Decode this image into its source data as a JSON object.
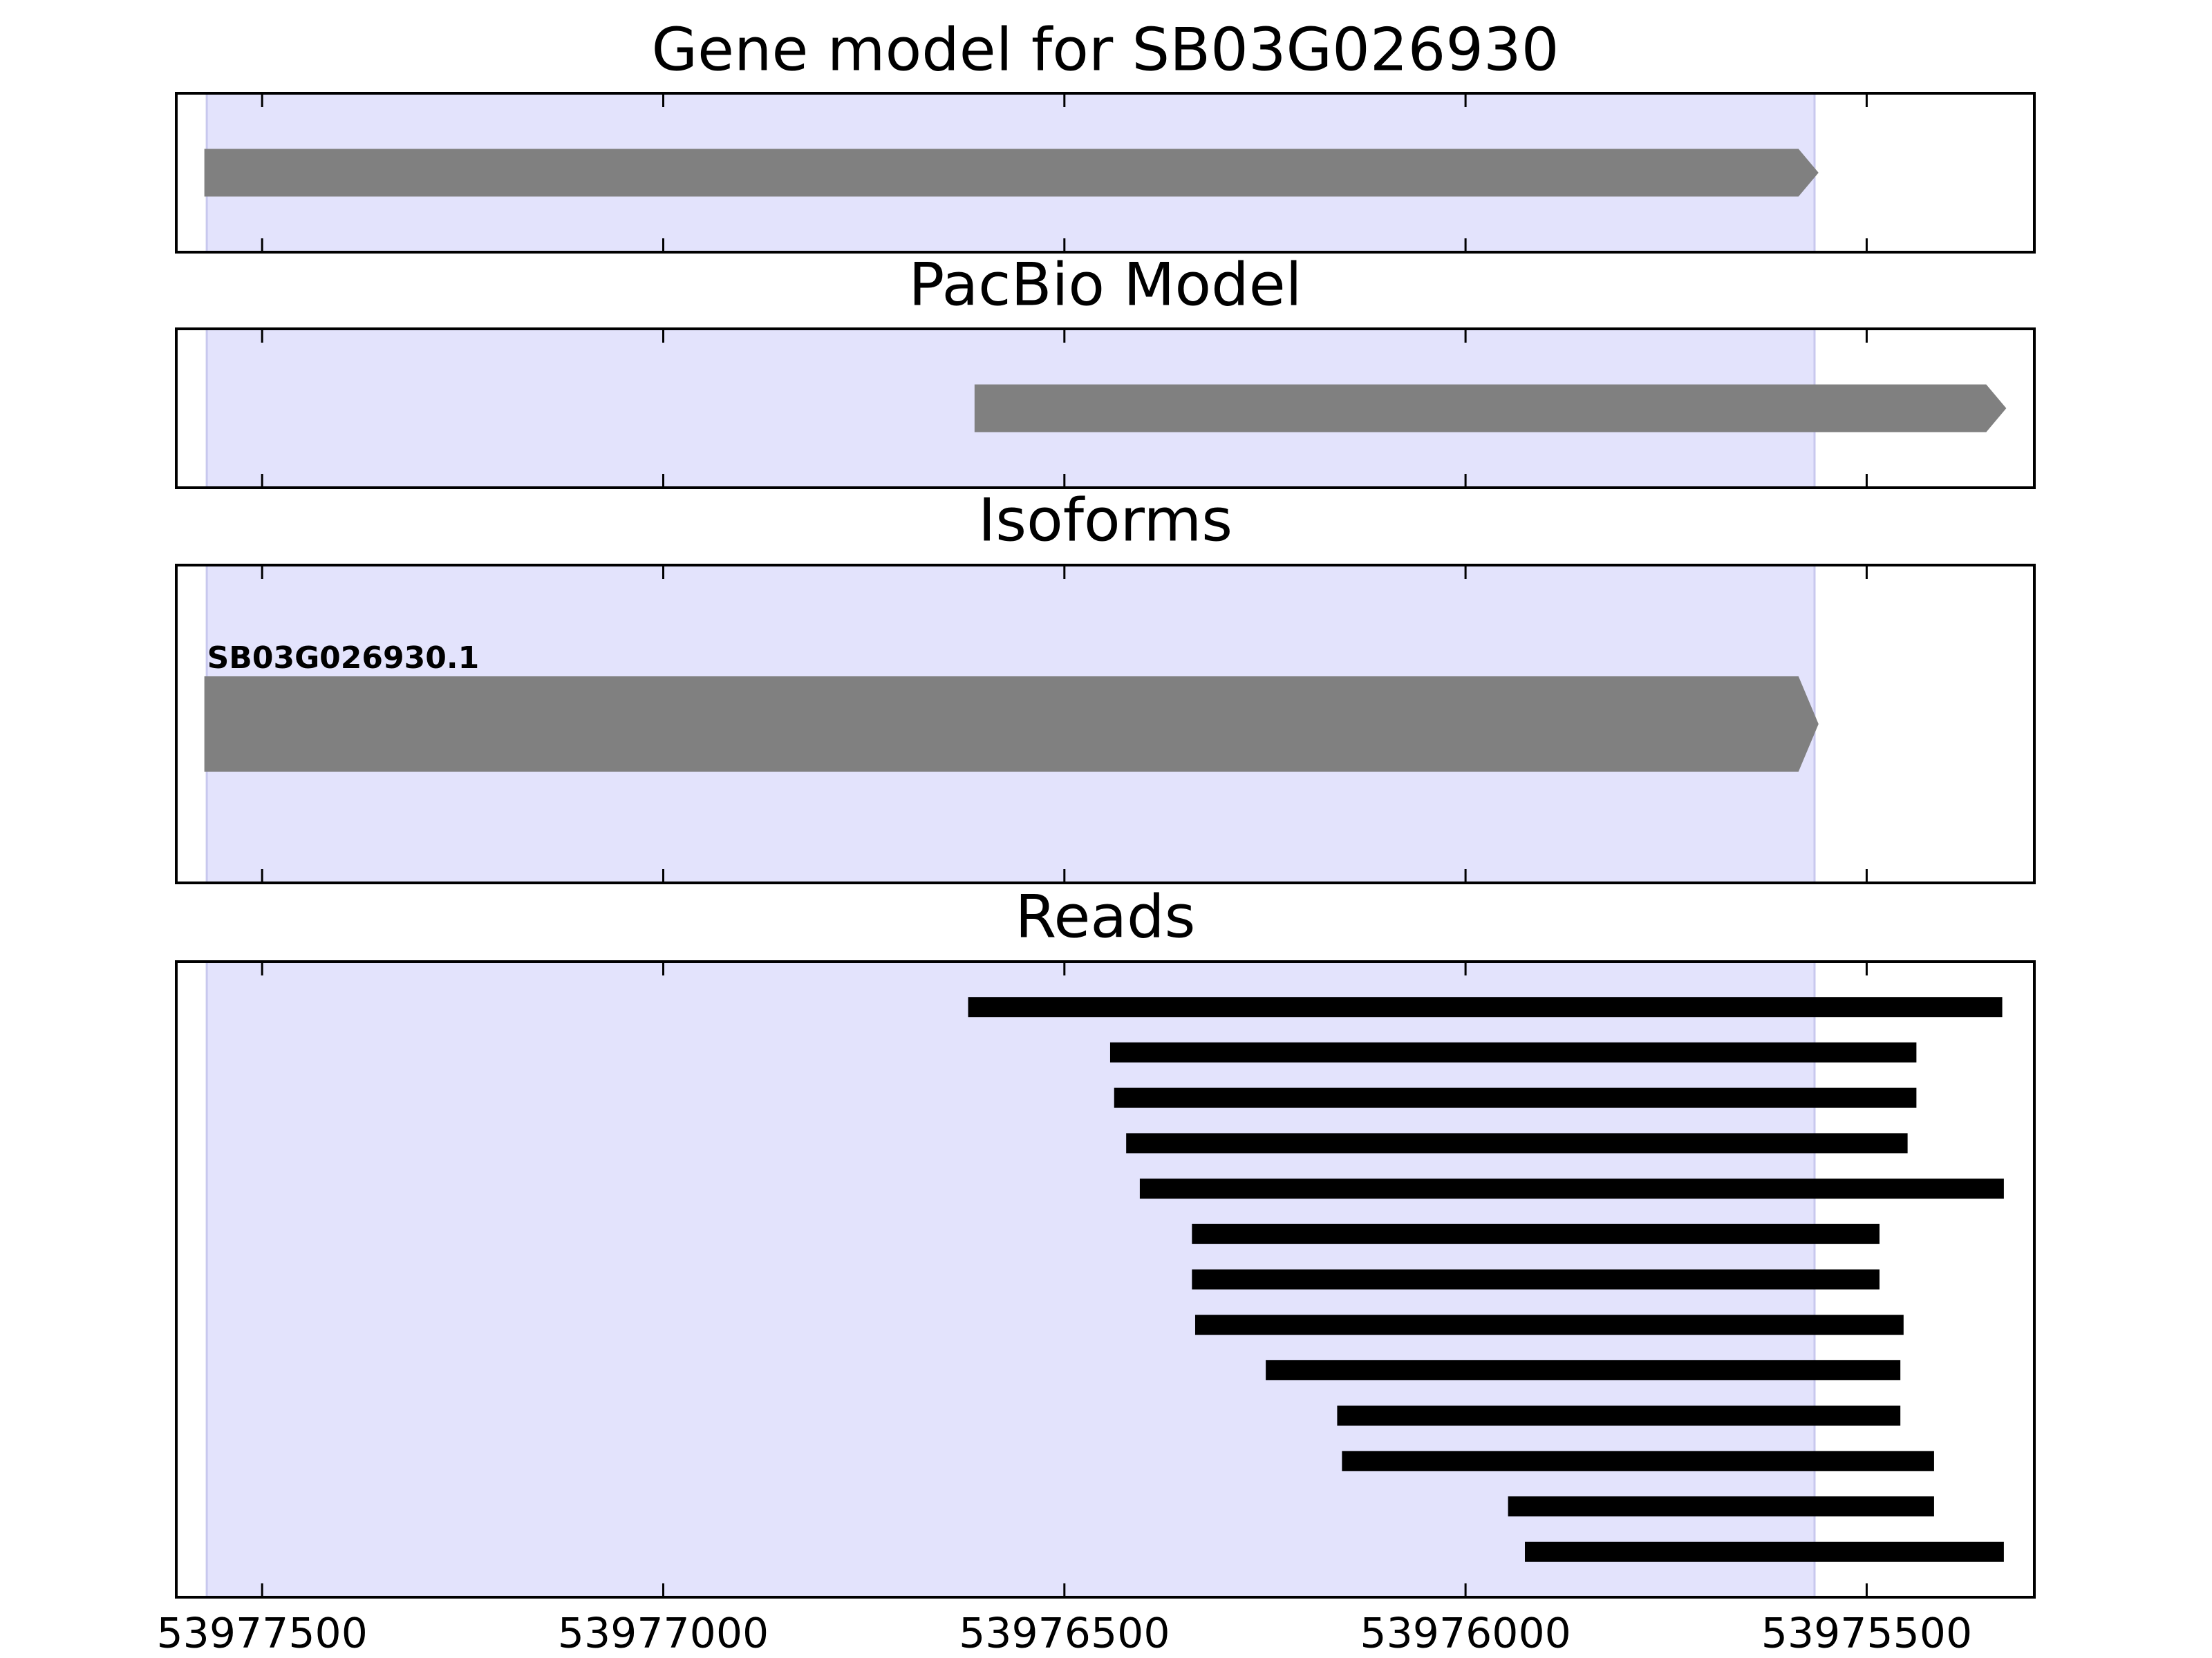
{
  "chart_data": [
    {
      "type": "gene",
      "title": "Gene model for SB03G026930",
      "xlim": [
        53977607,
        53975291
      ],
      "highlight": [
        53977569,
        53975565
      ],
      "color": "#808080",
      "features": [
        {
          "start": 53977572,
          "end": 53975560
        }
      ]
    },
    {
      "type": "gene",
      "title": "PacBio Model",
      "xlim": [
        53977607,
        53975291
      ],
      "highlight": [
        53977569,
        53975565
      ],
      "color": "#808080",
      "features": [
        {
          "start": 53976612,
          "end": 53975326
        }
      ]
    },
    {
      "type": "gene",
      "title": "Isoforms",
      "xlim": [
        53977607,
        53975291
      ],
      "highlight": [
        53977569,
        53975565
      ],
      "color": "#808080",
      "features": [
        {
          "name": "SB03G026930.1",
          "start": 53977572,
          "end": 53975560
        }
      ]
    },
    {
      "type": "reads",
      "title": "Reads",
      "xlim": [
        53977607,
        53975291
      ],
      "highlight": [
        53977569,
        53975565
      ],
      "color": "#000000",
      "xticks": [
        53977500,
        53977000,
        53976500,
        53976000,
        53975500
      ],
      "features": [
        {
          "start": 53976620,
          "end": 53975331
        },
        {
          "start": 53976443,
          "end": 53975438
        },
        {
          "start": 53976438,
          "end": 53975438
        },
        {
          "start": 53976423,
          "end": 53975449
        },
        {
          "start": 53976406,
          "end": 53975329
        },
        {
          "start": 53976341,
          "end": 53975484
        },
        {
          "start": 53976341,
          "end": 53975484
        },
        {
          "start": 53976337,
          "end": 53975454
        },
        {
          "start": 53976249,
          "end": 53975458
        },
        {
          "start": 53976160,
          "end": 53975458
        },
        {
          "start": 53976154,
          "end": 53975416
        },
        {
          "start": 53975947,
          "end": 53975416
        },
        {
          "start": 53975926,
          "end": 53975329
        }
      ]
    }
  ]
}
